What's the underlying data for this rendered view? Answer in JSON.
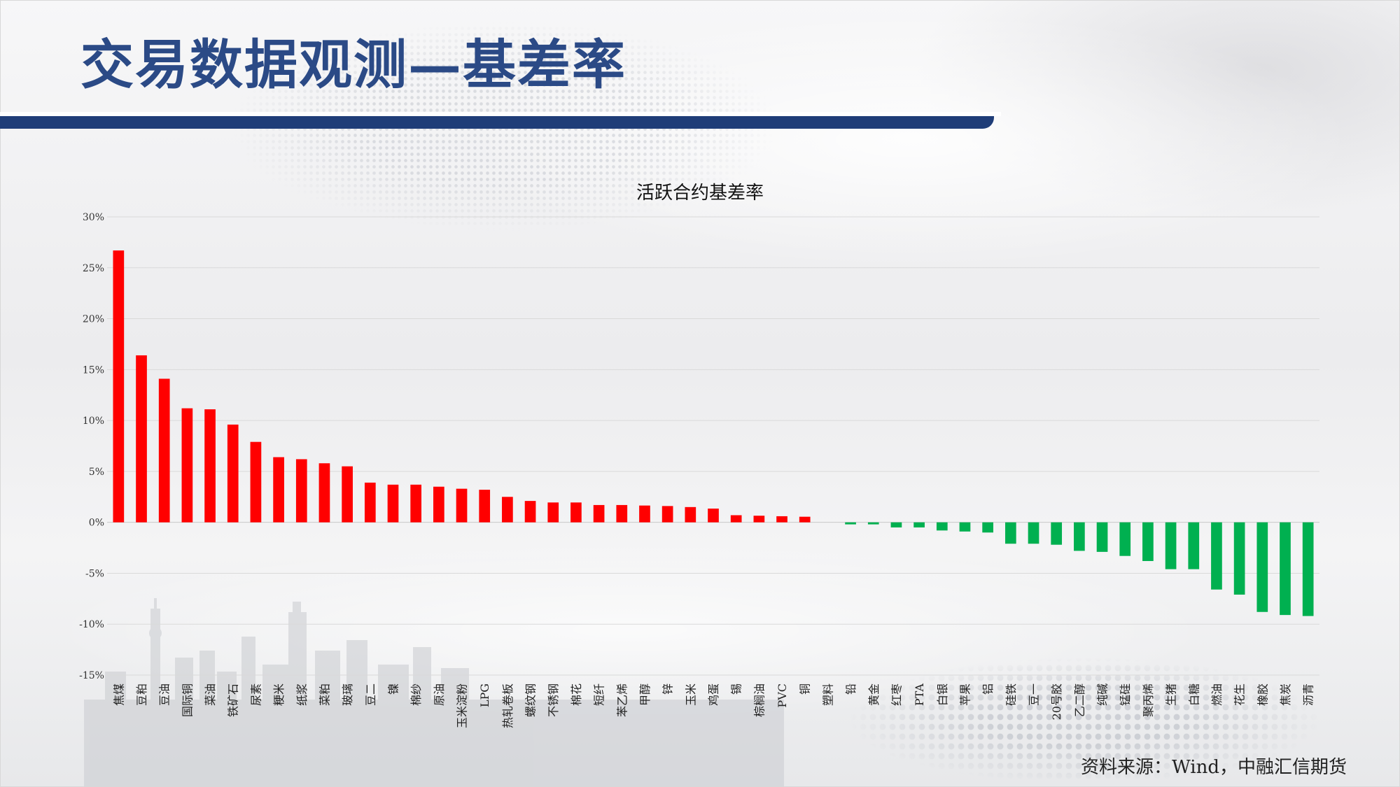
{
  "page": {
    "title": "交易数据观测—基差率",
    "source": "资料来源：Wind，中融汇信期货"
  },
  "colors": {
    "positive": "#ff0000",
    "negative": "#00b050",
    "title": "#2b4a86",
    "title_bar": "#1f3d78",
    "grid": "#d9d9d9"
  },
  "chart_data": {
    "type": "bar",
    "title": "活跃合约基差率",
    "xlabel": "",
    "ylabel": "",
    "ylim": [
      -15,
      30
    ],
    "ytick_values": [
      30,
      25,
      20,
      15,
      10,
      5,
      0,
      -5,
      -10,
      -15
    ],
    "ytick_labels": [
      "30%",
      "25%",
      "20%",
      "15%",
      "10%",
      "5%",
      "0%",
      "-5%",
      "-10%",
      "-15%"
    ],
    "grid": true,
    "legend": "none",
    "categories": [
      "焦煤",
      "豆粕",
      "豆油",
      "国际铜",
      "菜油",
      "铁矿石",
      "尿素",
      "粳米",
      "纸浆",
      "菜粕",
      "玻璃",
      "豆二",
      "镍",
      "棉纱",
      "原油",
      "玉米淀粉",
      "LPG",
      "热轧卷板",
      "螺纹钢",
      "不锈钢",
      "棉花",
      "短纤",
      "苯乙烯",
      "甲醇",
      "锌",
      "玉米",
      "鸡蛋",
      "锡",
      "棕榈油",
      "PVC",
      "铜",
      "塑料",
      "铅",
      "黄金",
      "红枣",
      "PTA",
      "白银",
      "苹果",
      "铝",
      "硅铁",
      "豆一",
      "20号胶",
      "乙二醇",
      "纯碱",
      "锰硅",
      "聚丙烯",
      "生猪",
      "白糖",
      "燃油",
      "花生",
      "橡胶",
      "焦炭",
      "沥青"
    ],
    "values": [
      26.7,
      16.4,
      14.1,
      11.2,
      11.1,
      9.6,
      7.9,
      6.4,
      6.2,
      5.8,
      5.5,
      3.9,
      3.7,
      3.7,
      3.5,
      3.3,
      3.2,
      2.5,
      2.1,
      1.95,
      1.95,
      1.7,
      1.7,
      1.65,
      1.6,
      1.5,
      1.35,
      0.7,
      0.65,
      0.6,
      0.55,
      0.0,
      -0.2,
      -0.2,
      -0.5,
      -0.5,
      -0.8,
      -0.9,
      -1.0,
      -2.1,
      -2.1,
      -2.2,
      -2.8,
      -2.9,
      -3.3,
      -3.8,
      -4.6,
      -4.6,
      -6.6,
      -7.1,
      -8.8,
      -9.1,
      -9.2
    ]
  }
}
